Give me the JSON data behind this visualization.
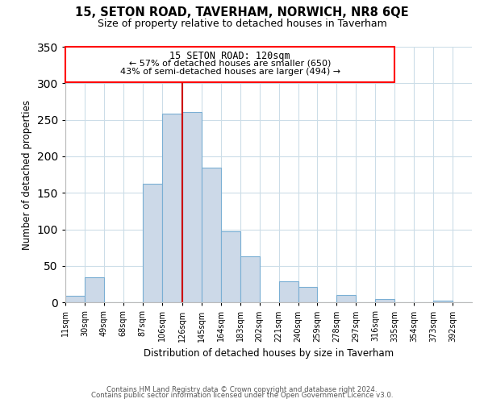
{
  "title": "15, SETON ROAD, TAVERHAM, NORWICH, NR8 6QE",
  "subtitle": "Size of property relative to detached houses in Taverham",
  "xlabel": "Distribution of detached houses by size in Taverham",
  "ylabel": "Number of detached properties",
  "bin_labels": [
    "11sqm",
    "30sqm",
    "49sqm",
    "68sqm",
    "87sqm",
    "106sqm",
    "126sqm",
    "145sqm",
    "164sqm",
    "183sqm",
    "202sqm",
    "221sqm",
    "240sqm",
    "259sqm",
    "278sqm",
    "297sqm",
    "316sqm",
    "335sqm",
    "354sqm",
    "373sqm",
    "392sqm"
  ],
  "bar_heights": [
    9,
    34,
    0,
    0,
    163,
    258,
    261,
    184,
    97,
    63,
    0,
    29,
    21,
    0,
    10,
    0,
    5,
    0,
    0,
    2,
    0
  ],
  "bar_color": "#ccd9e8",
  "bar_edge_color": "#7aafd4",
  "property_line_x": 126,
  "property_line_label": "15 SETON ROAD: 120sqm",
  "annotation_line1": "← 57% of detached houses are smaller (650)",
  "annotation_line2": "43% of semi-detached houses are larger (494) →",
  "vline_color": "#cc0000",
  "ylim": [
    0,
    350
  ],
  "yticks": [
    0,
    50,
    100,
    150,
    200,
    250,
    300,
    350
  ],
  "footnote1": "Contains HM Land Registry data © Crown copyright and database right 2024.",
  "footnote2": "Contains public sector information licensed under the Open Government Licence v3.0.",
  "bin_edges": [
    11,
    30,
    49,
    68,
    87,
    106,
    126,
    145,
    164,
    183,
    202,
    221,
    240,
    259,
    278,
    297,
    316,
    335,
    354,
    373,
    392
  ],
  "xlim_left": 11,
  "xlim_right": 411
}
